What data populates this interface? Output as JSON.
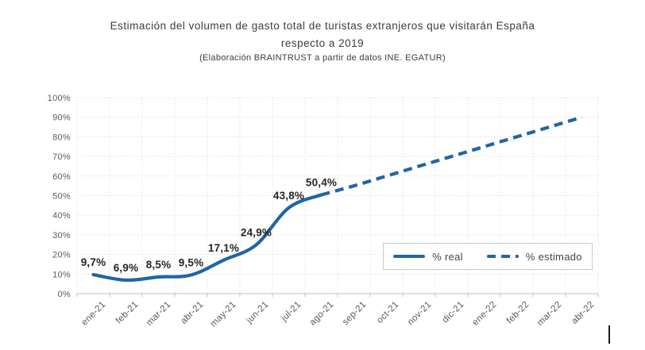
{
  "title": {
    "line1": "Estimación del volumen de gasto total de turistas extranjeros que visitarán España",
    "line2": "respecto a 2019",
    "subtitle": "(Elaboración BRAINTRUST a partir de datos INE. EGATUR)"
  },
  "legend": {
    "real_label": "% real",
    "estimado_label": "% estimado"
  },
  "colors": {
    "line": "#2165a5",
    "grid": "#d4d4d4",
    "axis_line": "#bfbfbf",
    "axis_text": "#595959",
    "data_label": "#262626",
    "title_text": "#3d3d3d",
    "legend_border": "#c9c9c9"
  },
  "chart_data": {
    "type": "line",
    "title": "Estimación del volumen de gasto total de turistas extranjeros que visitarán España respecto a 2019",
    "subtitle": "(Elaboración BRAINTRUST a partir de datos INE. EGATUR)",
    "categories": [
      "ene-21",
      "feb-21",
      "mar-21",
      "abr-21",
      "may-21",
      "jun-21",
      "jul-21",
      "ago-21",
      "sep-21",
      "oct-21",
      "nov-21",
      "dic-21",
      "ene-22",
      "feb-22",
      "mar-22",
      "abr-22"
    ],
    "series": [
      {
        "name": "% real",
        "style": "solid",
        "values": [
          9.7,
          6.9,
          8.5,
          9.5,
          17.1,
          24.9,
          43.8,
          50.4,
          null,
          null,
          null,
          null,
          null,
          null,
          null,
          null
        ]
      },
      {
        "name": "% estimado",
        "style": "dashed",
        "values": [
          null,
          null,
          null,
          null,
          null,
          null,
          null,
          50.4,
          55,
          60,
          65,
          70,
          75,
          80,
          85,
          90
        ]
      }
    ],
    "data_labels": [
      "9,7%",
      "6,9%",
      "8,5%",
      "9,5%",
      "17,1%",
      "24,9%",
      "43,8%",
      "50,4%"
    ],
    "ytick_labels": [
      "0%",
      "10%",
      "20%",
      "30%",
      "40%",
      "50%",
      "60%",
      "70%",
      "80%",
      "90%",
      "100%"
    ],
    "ylim": [
      0,
      100
    ],
    "grid": true,
    "legend_position": "inside-right"
  }
}
